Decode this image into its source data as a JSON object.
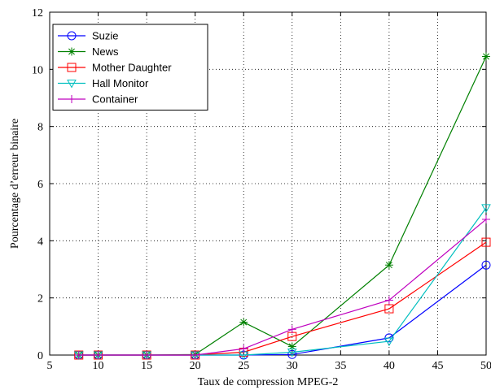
{
  "chart_data": {
    "type": "line",
    "title": "",
    "xlabel": "Taux de compression MPEG-2",
    "ylabel": "Pourcentage d’erreur binaire",
    "xlim": [
      5,
      50
    ],
    "ylim": [
      0,
      12
    ],
    "xticks": [
      5,
      10,
      15,
      20,
      25,
      30,
      35,
      40,
      45,
      50
    ],
    "yticks": [
      0,
      2,
      4,
      6,
      8,
      10,
      12
    ],
    "grid": true,
    "legend_position": "top-left",
    "x": [
      8,
      10,
      15,
      20,
      25,
      30,
      40,
      50
    ],
    "series": [
      {
        "name": "Suzie",
        "color": "#0000ff",
        "marker": "circle",
        "values": [
          0,
          0,
          0,
          0,
          0,
          0.02,
          0.6,
          3.15
        ]
      },
      {
        "name": "News",
        "color": "#008000",
        "marker": "asterisk",
        "values": [
          0,
          0,
          0,
          0.02,
          1.15,
          0.3,
          3.15,
          10.45
        ]
      },
      {
        "name": "Mother Daughter",
        "color": "#ff0000",
        "marker": "square",
        "values": [
          0,
          0,
          0,
          0,
          0.1,
          0.65,
          1.62,
          3.95
        ]
      },
      {
        "name": "Hall Monitor",
        "color": "#00bfbf",
        "marker": "triangle-down",
        "values": [
          0,
          0,
          0,
          0,
          0,
          0.1,
          0.48,
          5.15
        ]
      },
      {
        "name": "Container",
        "color": "#bf00bf",
        "marker": "plus",
        "values": [
          0,
          0,
          0,
          0,
          0.22,
          0.9,
          1.92,
          4.75
        ]
      }
    ]
  }
}
